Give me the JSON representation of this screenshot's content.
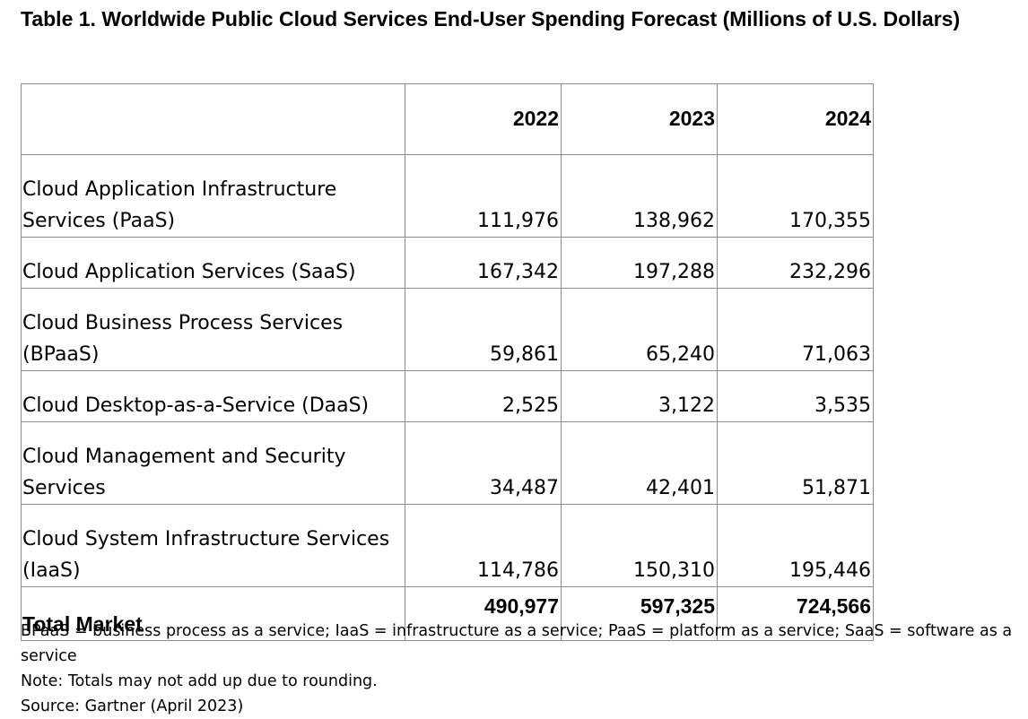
{
  "table": {
    "title": "Table 1. Worldwide Public Cloud Services End-User Spending Forecast (Millions of U.S. Dollars)",
    "columns": [
      "",
      "2022",
      "2023",
      "2024"
    ],
    "rows": [
      {
        "segment": "Cloud Application Infrastructure Services (PaaS)",
        "values": [
          "111,976",
          "138,962",
          "170,355"
        ]
      },
      {
        "segment": "Cloud Application Services (SaaS)",
        "values": [
          "167,342",
          "197,288",
          "232,296"
        ]
      },
      {
        "segment": "Cloud Business Process Services (BPaaS)",
        "values": [
          "59,861",
          "65,240",
          "71,063"
        ]
      },
      {
        "segment": "Cloud Desktop-as-a-Service (DaaS)",
        "values": [
          "2,525",
          "3,122",
          "3,535"
        ]
      },
      {
        "segment": "Cloud Management and Security Services",
        "values": [
          "34,487",
          "42,401",
          "51,871"
        ]
      },
      {
        "segment": "Cloud System Infrastructure Services (IaaS)",
        "values": [
          "114,786",
          "150,310",
          "195,446"
        ]
      }
    ],
    "total": {
      "segment": "Total Market",
      "values": [
        "490,977",
        "597,325",
        "724,566"
      ]
    }
  },
  "notes": {
    "abbreviations": "BPaaS = business process as a service; IaaS = infrastructure as a service; PaaS = platform as a service; SaaS = software as a service",
    "note": "Note: Totals may not add up due to rounding.",
    "source": "Source: Gartner (April 2023)"
  }
}
